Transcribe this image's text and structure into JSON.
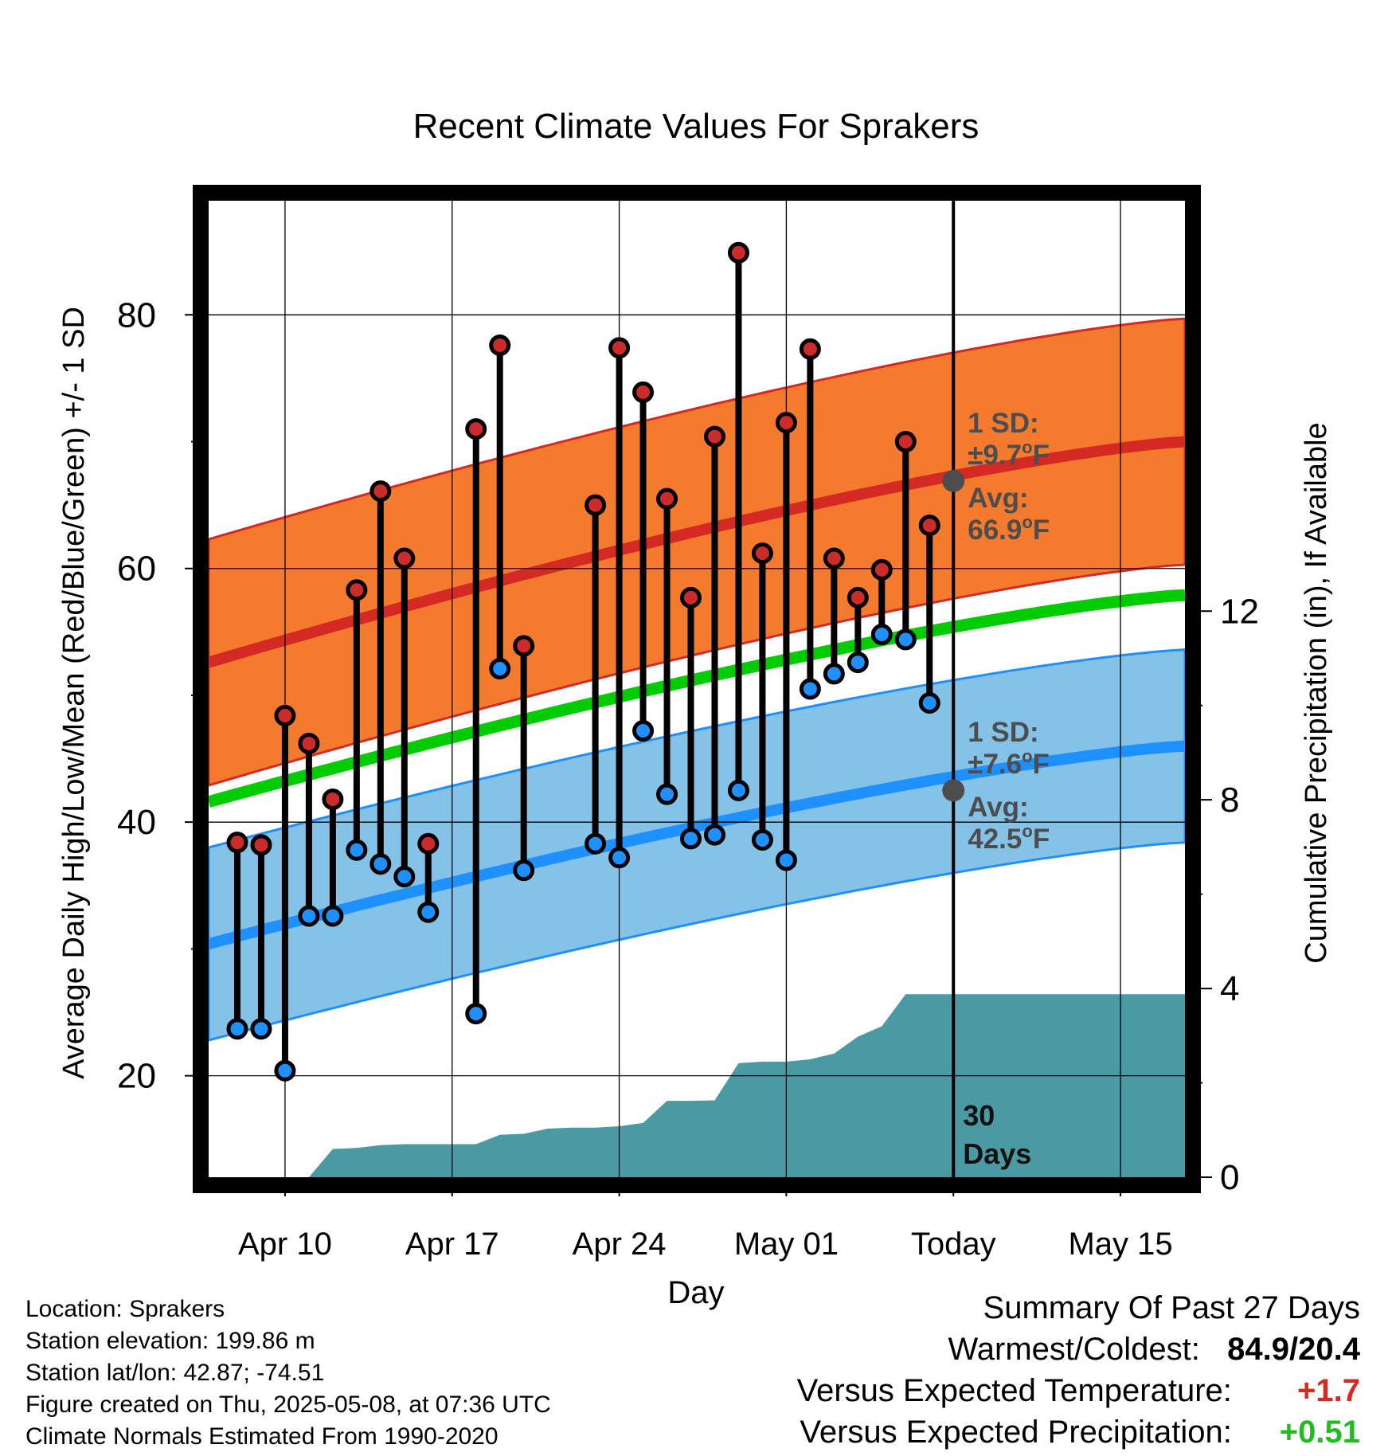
{
  "chart_data": {
    "type": "climate-range",
    "title": "Recent Climate Values For Sprakers",
    "xlabel": "Day",
    "ylabel_left": "Average Daily High/Low/Mean (Red/Blue/Green) +/- 1 SD",
    "ylabel_right": "Cumulative Precipitation (in), If Available",
    "x_ticks": [
      "Apr 10",
      "Apr 17",
      "Apr 24",
      "May 01",
      "Today",
      "May 15"
    ],
    "x_tick_days": [
      10,
      17,
      24,
      31,
      38,
      45
    ],
    "x_range_days": [
      6.8,
      47.7
    ],
    "ylim_temp": [
      12,
      89
    ],
    "y_ticks_temp": [
      "20",
      "40",
      "60",
      "80"
    ],
    "ylim_precip": [
      0,
      20.7
    ],
    "y_ticks_precip": [
      "0",
      "4",
      "8",
      "12"
    ],
    "days": [
      8,
      9,
      10,
      11,
      12,
      13,
      14,
      15,
      16,
      18,
      19,
      20,
      23,
      24,
      25,
      26,
      27,
      28,
      29,
      30,
      31,
      32,
      33,
      34,
      35,
      36,
      37
    ],
    "highs": [
      38.4,
      38.2,
      48.4,
      46.2,
      41.8,
      58.3,
      66.1,
      60.8,
      38.3,
      71.0,
      77.6,
      53.9,
      65.0,
      77.4,
      73.9,
      65.5,
      57.7,
      70.4,
      84.9,
      61.2,
      71.5,
      77.3,
      60.8,
      57.7,
      59.9,
      70.0,
      63.4
    ],
    "lows": [
      23.7,
      23.7,
      20.4,
      32.6,
      32.6,
      37.8,
      36.7,
      35.7,
      32.9,
      24.9,
      52.1,
      36.2,
      38.3,
      37.2,
      47.2,
      42.2,
      38.7,
      39.0,
      42.5,
      38.6,
      37.0,
      50.5,
      51.7,
      52.6,
      54.8,
      54.4,
      49.4
    ],
    "precip_cumulative": {
      "days": [
        8,
        11,
        12,
        13,
        14,
        15,
        16,
        17,
        18,
        19,
        20,
        21,
        22,
        23,
        24,
        25,
        26,
        27,
        28,
        29,
        30,
        31,
        32,
        33,
        34,
        35,
        36,
        37,
        38,
        39,
        45,
        47.7
      ],
      "values": [
        0,
        0,
        0.6,
        0.62,
        0.68,
        0.7,
        0.7,
        0.7,
        0.7,
        0.9,
        0.92,
        1.03,
        1.05,
        1.05,
        1.08,
        1.15,
        1.62,
        1.62,
        1.63,
        2.42,
        2.45,
        2.45,
        2.5,
        2.62,
        2.98,
        3.2,
        3.88,
        3.88,
        3.88,
        3.88,
        3.88,
        3.88
      ]
    },
    "normal_high": {
      "start": 52.6,
      "end": 70.0
    },
    "normal_low": {
      "start": 30.4,
      "end": 46.0
    },
    "normal_mean": {
      "start": 41.6,
      "end": 57.9
    },
    "high_sd": 9.7,
    "low_sd": 7.6,
    "annotation_high": {
      "sd_line1": "1 SD:",
      "sd_line2": "±9.7",
      "avg_line1": "Avg:",
      "avg_line2": "66.9",
      "unit": "F",
      "deg": "o",
      "avg_value": 66.9
    },
    "annotation_low": {
      "sd_line1": "1 SD:",
      "sd_line2": "±7.6",
      "avg_line1": "Avg:",
      "avg_line2": "42.5",
      "unit": "F",
      "deg": "o",
      "avg_value": 42.5
    },
    "today_label_1": "30",
    "today_label_2": "Days",
    "today_day": 38,
    "colors": {
      "high_band": "#f47a2e",
      "high_line": "#d42a23",
      "low_band": "#85c2e8",
      "low_line": "#1e90ff",
      "mean_line": "#00cc00",
      "precip": "#4a9aa3",
      "high_dot": "#cc2b2b",
      "low_dot": "#1e90ff",
      "annotation": "#4d4d4d",
      "marker": "#4d4d4d"
    }
  },
  "info": {
    "location": "Location: Sprakers",
    "elevation": "Station elevation: 199.86 m",
    "latlon": "Station lat/lon: 42.87; -74.51",
    "created": "Figure created on Thu, 2025-05-08, at 07:36 UTC",
    "normals": "Climate Normals Estimated From 1990-2020"
  },
  "summary": {
    "title": "Summary Of Past 27 Days",
    "warm_label": "Warmest/Coldest:",
    "warm_value": "84.9/20.4",
    "temp_label": "Versus Expected Temperature:",
    "temp_value": "+1.7",
    "precip_label": "Versus Expected Precipitation:",
    "precip_value": "+0.51",
    "temp_color": "#d42a23",
    "precip_color": "#22bb22"
  }
}
